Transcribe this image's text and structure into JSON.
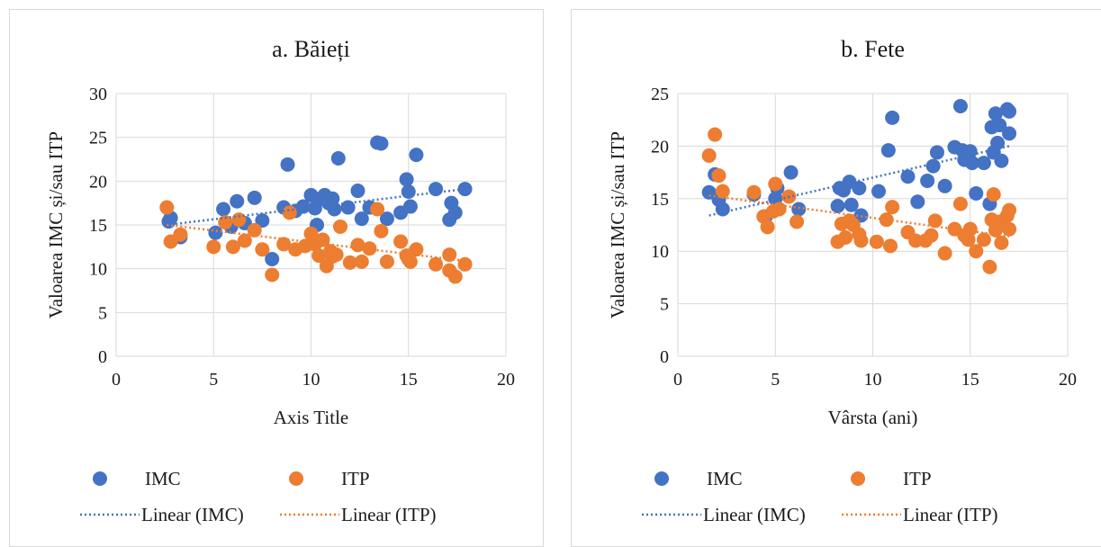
{
  "chart_data": [
    {
      "type": "scatter",
      "title": "a. Băieți",
      "xlabel": "Axis Title",
      "ylabel": "Valoarea IMC și/sau ITP",
      "xlim": [
        0,
        20
      ],
      "ylim": [
        0,
        30
      ],
      "xticks": [
        "0",
        "5",
        "10",
        "15",
        "20"
      ],
      "yticks": [
        "0",
        "5",
        "10",
        "15",
        "20",
        "25",
        "30"
      ],
      "grid": true,
      "legend_position": "bottom",
      "series": [
        {
          "name": "IMC",
          "color": "#4472C4",
          "points": [
            [
              2.7,
              15.4
            ],
            [
              2.8,
              15.8
            ],
            [
              3.3,
              13.6
            ],
            [
              5.1,
              14.1
            ],
            [
              5.5,
              16.8
            ],
            [
              5.9,
              14.8
            ],
            [
              6.2,
              17.7
            ],
            [
              6.6,
              15.2
            ],
            [
              7.1,
              18.1
            ],
            [
              7.5,
              15.5
            ],
            [
              8.0,
              11.1
            ],
            [
              8.6,
              17.0
            ],
            [
              8.8,
              21.9
            ],
            [
              9.2,
              16.6
            ],
            [
              9.6,
              17.1
            ],
            [
              10.0,
              18.4
            ],
            [
              10.2,
              16.9
            ],
            [
              10.3,
              15.0
            ],
            [
              10.5,
              18.0
            ],
            [
              10.7,
              18.4
            ],
            [
              10.9,
              17.5
            ],
            [
              11.1,
              18.0
            ],
            [
              11.2,
              16.8
            ],
            [
              11.4,
              22.6
            ],
            [
              11.9,
              17.0
            ],
            [
              12.4,
              18.9
            ],
            [
              12.6,
              15.7
            ],
            [
              13.0,
              17.0
            ],
            [
              13.4,
              24.4
            ],
            [
              13.6,
              24.3
            ],
            [
              13.9,
              15.7
            ],
            [
              14.6,
              16.4
            ],
            [
              14.9,
              20.2
            ],
            [
              15.0,
              18.8
            ],
            [
              15.1,
              17.1
            ],
            [
              15.4,
              23.0
            ],
            [
              16.4,
              19.1
            ],
            [
              17.1,
              15.6
            ],
            [
              17.2,
              17.5
            ],
            [
              17.4,
              16.4
            ],
            [
              17.9,
              19.1
            ]
          ]
        },
        {
          "name": "ITP",
          "color": "#ED7D31",
          "points": [
            [
              2.6,
              17.0
            ],
            [
              2.8,
              13.1
            ],
            [
              3.3,
              13.9
            ],
            [
              5.0,
              12.5
            ],
            [
              5.6,
              15.3
            ],
            [
              6.0,
              12.5
            ],
            [
              6.3,
              15.6
            ],
            [
              6.6,
              13.2
            ],
            [
              7.1,
              14.4
            ],
            [
              7.5,
              12.2
            ],
            [
              8.0,
              9.3
            ],
            [
              8.6,
              12.8
            ],
            [
              8.9,
              16.4
            ],
            [
              9.2,
              12.2
            ],
            [
              9.7,
              12.6
            ],
            [
              10.0,
              14.0
            ],
            [
              10.2,
              12.8
            ],
            [
              10.4,
              11.5
            ],
            [
              10.6,
              13.3
            ],
            [
              10.8,
              10.3
            ],
            [
              11.0,
              12.0
            ],
            [
              11.1,
              11.4
            ],
            [
              11.3,
              11.6
            ],
            [
              11.5,
              14.8
            ],
            [
              12.0,
              10.7
            ],
            [
              12.4,
              12.7
            ],
            [
              12.6,
              10.8
            ],
            [
              13.0,
              12.3
            ],
            [
              13.4,
              16.8
            ],
            [
              13.6,
              14.3
            ],
            [
              13.9,
              10.8
            ],
            [
              14.6,
              13.1
            ],
            [
              14.9,
              11.5
            ],
            [
              15.0,
              11.1
            ],
            [
              15.1,
              10.8
            ],
            [
              15.4,
              12.2
            ],
            [
              16.4,
              10.5
            ],
            [
              17.1,
              11.6
            ],
            [
              17.1,
              9.8
            ],
            [
              17.4,
              9.1
            ],
            [
              17.9,
              10.5
            ]
          ]
        }
      ],
      "trendlines": [
        {
          "name": "Linear (IMC)",
          "color": "#4472C4",
          "x": [
            2.6,
            17.9
          ],
          "y": [
            15.0,
            19.1
          ]
        },
        {
          "name": "Linear (ITP)",
          "color": "#ED7D31",
          "x": [
            2.6,
            17.9
          ],
          "y": [
            15.0,
            10.9
          ]
        }
      ]
    },
    {
      "type": "scatter",
      "title": "b. Fete",
      "xlabel": "Vârsta (ani)",
      "ylabel": "Valoarea IMC și/sau ITP",
      "xlim": [
        0,
        20
      ],
      "ylim": [
        0,
        25
      ],
      "xticks": [
        "0",
        "5",
        "10",
        "15",
        "20"
      ],
      "yticks": [
        "0",
        "5",
        "10",
        "15",
        "20",
        "25"
      ],
      "grid": true,
      "legend_position": "bottom",
      "series": [
        {
          "name": "IMC",
          "color": "#4472C4",
          "points": [
            [
              1.6,
              15.6
            ],
            [
              1.9,
              17.3
            ],
            [
              2.1,
              14.9
            ],
            [
              2.3,
              14.0
            ],
            [
              3.9,
              15.4
            ],
            [
              4.5,
              13.3
            ],
            [
              5.0,
              15.0
            ],
            [
              5.1,
              16.0
            ],
            [
              5.8,
              17.5
            ],
            [
              6.2,
              14.0
            ],
            [
              8.2,
              14.3
            ],
            [
              8.3,
              16.0
            ],
            [
              8.5,
              15.8
            ],
            [
              8.8,
              16.6
            ],
            [
              8.9,
              14.4
            ],
            [
              9.3,
              16.0
            ],
            [
              9.4,
              13.4
            ],
            [
              10.3,
              15.7
            ],
            [
              10.8,
              19.6
            ],
            [
              11.0,
              22.7
            ],
            [
              11.8,
              17.1
            ],
            [
              12.3,
              14.7
            ],
            [
              12.8,
              16.7
            ],
            [
              13.1,
              18.1
            ],
            [
              13.3,
              19.4
            ],
            [
              13.7,
              16.2
            ],
            [
              14.2,
              19.9
            ],
            [
              14.5,
              23.8
            ],
            [
              14.6,
              19.6
            ],
            [
              14.7,
              18.7
            ],
            [
              15.0,
              19.5
            ],
            [
              15.1,
              18.4
            ],
            [
              15.3,
              15.5
            ],
            [
              15.7,
              18.4
            ],
            [
              16.0,
              14.5
            ],
            [
              16.1,
              21.8
            ],
            [
              16.2,
              19.4
            ],
            [
              16.3,
              23.1
            ],
            [
              16.4,
              20.3
            ],
            [
              16.5,
              22.0
            ],
            [
              16.6,
              18.6
            ],
            [
              16.9,
              23.5
            ],
            [
              17.0,
              23.3
            ],
            [
              17.0,
              21.2
            ]
          ]
        },
        {
          "name": "ITP",
          "color": "#ED7D31",
          "points": [
            [
              1.6,
              19.1
            ],
            [
              1.9,
              21.1
            ],
            [
              2.1,
              17.2
            ],
            [
              2.3,
              15.7
            ],
            [
              3.9,
              15.6
            ],
            [
              4.4,
              13.3
            ],
            [
              4.6,
              12.3
            ],
            [
              4.9,
              13.8
            ],
            [
              5.0,
              16.4
            ],
            [
              5.2,
              14.0
            ],
            [
              5.7,
              15.2
            ],
            [
              6.1,
              12.8
            ],
            [
              8.2,
              10.9
            ],
            [
              8.4,
              12.6
            ],
            [
              8.6,
              11.3
            ],
            [
              8.8,
              12.9
            ],
            [
              9.0,
              12.5
            ],
            [
              9.3,
              11.6
            ],
            [
              9.4,
              11.0
            ],
            [
              10.2,
              10.9
            ],
            [
              10.7,
              13.0
            ],
            [
              10.9,
              10.5
            ],
            [
              11.0,
              14.2
            ],
            [
              11.8,
              11.8
            ],
            [
              12.2,
              11.0
            ],
            [
              12.7,
              11.0
            ],
            [
              13.0,
              11.5
            ],
            [
              13.2,
              12.9
            ],
            [
              13.7,
              9.8
            ],
            [
              14.2,
              12.1
            ],
            [
              14.5,
              14.5
            ],
            [
              14.7,
              11.5
            ],
            [
              14.9,
              11.1
            ],
            [
              15.0,
              12.1
            ],
            [
              15.3,
              10.0
            ],
            [
              15.7,
              11.1
            ],
            [
              16.0,
              8.5
            ],
            [
              16.1,
              13.0
            ],
            [
              16.2,
              15.4
            ],
            [
              16.3,
              12.0
            ],
            [
              16.5,
              12.8
            ],
            [
              16.6,
              10.8
            ],
            [
              16.9,
              13.4
            ],
            [
              17.0,
              13.9
            ],
            [
              17.0,
              12.1
            ]
          ]
        }
      ],
      "trendlines": [
        {
          "name": "Linear (IMC)",
          "color": "#4472C4",
          "x": [
            1.6,
            17.0
          ],
          "y": [
            13.4,
            20.0
          ]
        },
        {
          "name": "Linear (ITP)",
          "color": "#ED7D31",
          "x": [
            1.6,
            17.0
          ],
          "y": [
            15.3,
            11.4
          ]
        }
      ]
    }
  ]
}
